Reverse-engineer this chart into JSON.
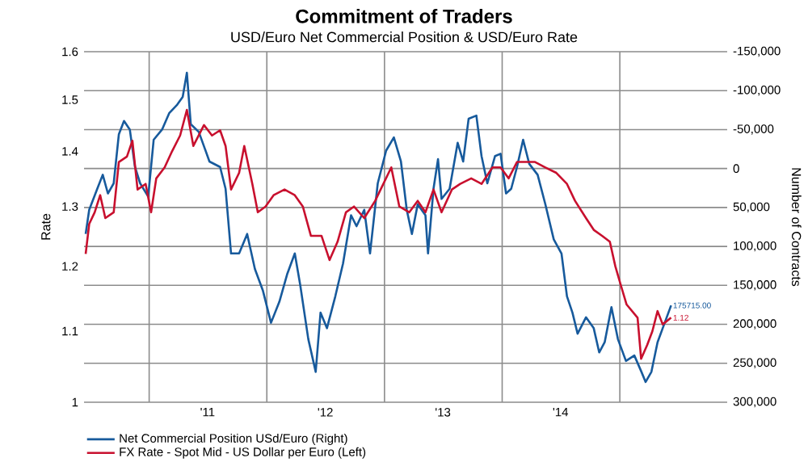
{
  "chart_data": {
    "type": "line",
    "title": "Commitment of Traders",
    "subtitle": "USD/Euro Net Commercial Position & USD/Euro Rate",
    "ylabel": "Rate",
    "y2label": "Number of Contracts",
    "log": "y",
    "grid": true,
    "legend": "bottom",
    "xlim": [
      "2010-06-13",
      "2015-11-30"
    ],
    "xticks": [
      {
        "value": "2011-01-01",
        "label": null
      },
      {
        "value": "2012-01-01",
        "label": null
      },
      {
        "value": "2013-01-01",
        "label": null
      },
      {
        "value": "2014-01-01",
        "label": null
      },
      {
        "value": "2015-01-01",
        "label": null
      },
      {
        "value": "2011-07-01",
        "label": "'11"
      },
      {
        "value": "2012-07-01",
        "label": "'12"
      },
      {
        "value": "2013-07-01",
        "label": "'13"
      },
      {
        "value": "2014-07-01",
        "label": "'14"
      }
    ],
    "ylim": [
      1,
      1.6
    ],
    "yticks": [
      1,
      1.1,
      1.2,
      1.3,
      1.4,
      1.5,
      1.6
    ],
    "y2lim": [
      300000,
      -150000
    ],
    "y2ticks": [
      {
        "value": -150000,
        "label": "-150,000"
      },
      {
        "value": -100000,
        "label": "-100,000"
      },
      {
        "value": -50000,
        "label": "-50,000"
      },
      0,
      {
        "value": 50000,
        "label": "50,000"
      },
      {
        "value": 100000,
        "label": "100,000"
      },
      {
        "value": 150000,
        "label": "150,000"
      },
      {
        "value": 200000,
        "label": "200,000"
      },
      {
        "value": 250000,
        "label": "250,000"
      },
      {
        "value": 300000,
        "label": "300,000"
      }
    ],
    "series": [
      {
        "name": "Net Commercial Position USd/Euro (Right)",
        "color": "#175a9c",
        "axis": "y2",
        "x": [
          "2010-06-18",
          "2010-06-29",
          "2010-07-24",
          "2010-08-10",
          "2010-08-26",
          "2010-09-13",
          "2010-09-29",
          "2010-10-15",
          "2010-11-02",
          "2010-11-18",
          "2010-12-04",
          "2010-12-29",
          "2011-01-15",
          "2011-02-10",
          "2011-03-04",
          "2011-03-29",
          "2011-04-15",
          "2011-04-28",
          "2011-05-10",
          "2011-06-04",
          "2011-07-07",
          "2011-08-09",
          "2011-08-26",
          "2011-09-12",
          "2011-10-07",
          "2011-11-01",
          "2011-11-25",
          "2011-12-20",
          "2012-01-14",
          "2012-02-09",
          "2012-03-04",
          "2012-03-28",
          "2012-04-14",
          "2012-05-09",
          "2012-06-01",
          "2012-06-16",
          "2012-07-06",
          "2012-08-01",
          "2012-08-25",
          "2012-09-19",
          "2012-10-06",
          "2012-10-30",
          "2012-11-17",
          "2012-12-11",
          "2013-01-06",
          "2013-01-30",
          "2013-02-21",
          "2013-03-11",
          "2013-03-27",
          "2013-04-14",
          "2013-05-08",
          "2013-05-16",
          "2013-06-02",
          "2013-06-16",
          "2013-06-27",
          "2013-07-22",
          "2013-08-16",
          "2013-09-02",
          "2013-09-19",
          "2013-10-13",
          "2013-10-29",
          "2013-11-16",
          "2013-12-10",
          "2013-12-27",
          "2014-01-13",
          "2014-01-29",
          "2014-02-16",
          "2014-03-07",
          "2014-03-26",
          "2014-04-21",
          "2014-05-15",
          "2014-06-10",
          "2014-07-04",
          "2014-07-21",
          "2014-08-07",
          "2014-08-23",
          "2014-09-18",
          "2014-10-12",
          "2014-10-29",
          "2014-11-15",
          "2014-12-06",
          "2014-12-26",
          "2015-01-20",
          "2015-02-15",
          "2015-03-09",
          "2015-03-22",
          "2015-04-09",
          "2015-04-28",
          "2015-05-14",
          "2015-06-09"
        ],
        "values": [
          84000,
          53000,
          26000,
          8000,
          32000,
          19000,
          -44000,
          -61000,
          -50000,
          -2000,
          19000,
          36000,
          -37000,
          -50000,
          -71000,
          -82000,
          -92000,
          -123000,
          -57000,
          -47000,
          -9000,
          -2000,
          26000,
          109000,
          109000,
          84000,
          129000,
          157000,
          198000,
          171000,
          136000,
          109000,
          150000,
          219000,
          261000,
          185000,
          205000,
          164000,
          122000,
          60000,
          74000,
          53000,
          109000,
          19000,
          -23000,
          -40000,
          -9000,
          53000,
          84000,
          46000,
          60000,
          109000,
          26000,
          -12000,
          39000,
          26000,
          -33000,
          -9000,
          -64000,
          -68000,
          -16000,
          19000,
          -16000,
          -19000,
          32000,
          26000,
          -2000,
          -37000,
          -6000,
          8000,
          46000,
          91000,
          109000,
          164000,
          185000,
          212000,
          191000,
          205000,
          236000,
          223000,
          178000,
          219000,
          247000,
          240000,
          261000,
          274000,
          261000,
          223000,
          205000,
          175715
        ],
        "value_labels": [
          null,
          null,
          null,
          null,
          null,
          null,
          null,
          null,
          null,
          null,
          null,
          null,
          null,
          null,
          null,
          null,
          null,
          null,
          null,
          null,
          null,
          null,
          null,
          null,
          null,
          null,
          null,
          null,
          null,
          null,
          null,
          null,
          null,
          null,
          null,
          null,
          null,
          null,
          null,
          null,
          null,
          null,
          null,
          null,
          null,
          null,
          null,
          null,
          null,
          null,
          null,
          null,
          null,
          null,
          null,
          null,
          null,
          null,
          null,
          null,
          null,
          null,
          null,
          null,
          null,
          null,
          null,
          null,
          null,
          null,
          null,
          null,
          null,
          null,
          null,
          null,
          null,
          null,
          null,
          null,
          null,
          null,
          null,
          null,
          null,
          null,
          null,
          null,
          null,
          "175715.00"
        ]
      },
      {
        "name": "FX Rate - Spot Mid - US Dollar per Euro (Left)",
        "color": "#c8102e",
        "axis": "y",
        "x": [
          "2010-06-18",
          "2010-06-29",
          "2010-07-16",
          "2010-08-02",
          "2010-08-18",
          "2010-09-13",
          "2010-09-29",
          "2010-10-24",
          "2010-11-10",
          "2010-11-26",
          "2010-12-21",
          "2011-01-07",
          "2011-01-23",
          "2011-02-18",
          "2011-03-13",
          "2011-04-07",
          "2011-04-28",
          "2011-05-18",
          "2011-06-20",
          "2011-07-15",
          "2011-08-09",
          "2011-08-26",
          "2011-09-12",
          "2011-10-07",
          "2011-10-23",
          "2011-11-17",
          "2011-12-04",
          "2011-12-28",
          "2012-01-22",
          "2012-02-25",
          "2012-03-28",
          "2012-04-22",
          "2012-05-17",
          "2012-06-19",
          "2012-07-14",
          "2012-08-08",
          "2012-09-03",
          "2012-09-28",
          "2012-10-30",
          "2012-12-03",
          "2013-01-22",
          "2013-02-16",
          "2013-03-19",
          "2013-04-14",
          "2013-05-08",
          "2013-06-02",
          "2013-06-27",
          "2013-07-29",
          "2013-08-24",
          "2013-09-27",
          "2013-10-29",
          "2013-12-02",
          "2013-12-27",
          "2014-01-21",
          "2014-02-16",
          "2014-03-10",
          "2014-04-13",
          "2014-05-15",
          "2014-06-18",
          "2014-07-21",
          "2014-08-15",
          "2014-09-18",
          "2014-10-12",
          "2014-11-07",
          "2014-12-01",
          "2014-12-18",
          "2015-01-04",
          "2015-01-22",
          "2015-02-25",
          "2015-03-08",
          "2015-03-27",
          "2015-04-12",
          "2015-04-28",
          "2015-05-14",
          "2015-06-09"
        ],
        "values": [
          1.22,
          1.27,
          1.29,
          1.32,
          1.28,
          1.29,
          1.38,
          1.39,
          1.42,
          1.33,
          1.34,
          1.29,
          1.35,
          1.37,
          1.4,
          1.43,
          1.48,
          1.41,
          1.45,
          1.43,
          1.44,
          1.41,
          1.33,
          1.36,
          1.41,
          1.34,
          1.29,
          1.3,
          1.32,
          1.33,
          1.32,
          1.3,
          1.25,
          1.25,
          1.21,
          1.24,
          1.29,
          1.3,
          1.28,
          1.31,
          1.37,
          1.3,
          1.29,
          1.31,
          1.29,
          1.33,
          1.29,
          1.33,
          1.34,
          1.35,
          1.34,
          1.37,
          1.37,
          1.35,
          1.38,
          1.38,
          1.38,
          1.37,
          1.36,
          1.34,
          1.31,
          1.28,
          1.26,
          1.25,
          1.24,
          1.2,
          1.17,
          1.14,
          1.12,
          1.06,
          1.08,
          1.1,
          1.13,
          1.11,
          1.12
        ],
        "value_labels": [
          null,
          null,
          null,
          null,
          null,
          null,
          null,
          null,
          null,
          null,
          null,
          null,
          null,
          null,
          null,
          null,
          null,
          null,
          null,
          null,
          null,
          null,
          null,
          null,
          null,
          null,
          null,
          null,
          null,
          null,
          null,
          null,
          null,
          null,
          null,
          null,
          null,
          null,
          null,
          null,
          null,
          null,
          null,
          null,
          null,
          null,
          null,
          null,
          null,
          null,
          null,
          null,
          null,
          null,
          null,
          null,
          null,
          null,
          null,
          null,
          null,
          null,
          null,
          null,
          null,
          null,
          null,
          null,
          null,
          null,
          null,
          null,
          null,
          null,
          "1.12"
        ]
      }
    ]
  }
}
